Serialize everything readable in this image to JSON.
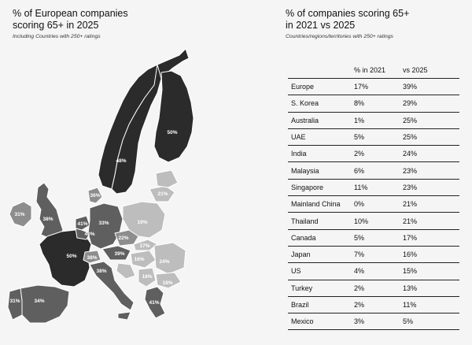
{
  "left": {
    "title_line1": "% of European companies",
    "title_line2": "scoring 65+ in 2025",
    "subtitle": "Including Countries with 250+ ratings"
  },
  "right": {
    "title_line1": "% of companies scoring 65+",
    "title_line2": "in 2021 vs 2025",
    "subtitle": "Countries/regions/territories with 250+ ratings"
  },
  "map": {
    "labels": {
      "sweden": "48%",
      "finland": "50%",
      "france": "50%",
      "uk": "38%",
      "ireland": "31%",
      "germany": "33%",
      "netherlands": "41%",
      "belgium": "40%",
      "denmark": "36%",
      "poland": "19%",
      "lithuania": "21%",
      "czechia": "22%",
      "slovakia": "17%",
      "austria": "39%",
      "switzerland": "38%",
      "hungary": "16%",
      "romania": "24%",
      "italy": "38%",
      "spain": "34%",
      "portugal": "31%",
      "serbia": "18%",
      "bulgaria": "18%",
      "greece": "41%"
    },
    "colors": {
      "high": "#2b2b2b",
      "upper": "#5f5f5f",
      "mid": "#8d8d8d",
      "low": "#bdbdbd",
      "outline": "#ffffff"
    }
  },
  "table": {
    "headers": [
      "",
      "% in 2021",
      "vs 2025"
    ],
    "rows": [
      {
        "name": "Europe",
        "y2021": "17%",
        "y2025": "39%"
      },
      {
        "name": "S. Korea",
        "y2021": "8%",
        "y2025": "29%"
      },
      {
        "name": "Australia",
        "y2021": "1%",
        "y2025": "25%"
      },
      {
        "name": "UAE",
        "y2021": "5%",
        "y2025": "25%"
      },
      {
        "name": "India",
        "y2021": "2%",
        "y2025": "24%"
      },
      {
        "name": "Malaysia",
        "y2021": "6%",
        "y2025": "23%"
      },
      {
        "name": "Singapore",
        "y2021": "11%",
        "y2025": "23%"
      },
      {
        "name": "Mainland China",
        "y2021": "0%",
        "y2025": "21%"
      },
      {
        "name": "Thailand",
        "y2021": "10%",
        "y2025": "21%"
      },
      {
        "name": "Canada",
        "y2021": "5%",
        "y2025": "17%"
      },
      {
        "name": "Japan",
        "y2021": "7%",
        "y2025": "16%"
      },
      {
        "name": "US",
        "y2021": "4%",
        "y2025": "15%"
      },
      {
        "name": "Turkey",
        "y2021": "2%",
        "y2025": "13%"
      },
      {
        "name": "Brazil",
        "y2021": "2%",
        "y2025": "11%"
      },
      {
        "name": "Mexico",
        "y2021": "3%",
        "y2025": "5%"
      }
    ]
  }
}
